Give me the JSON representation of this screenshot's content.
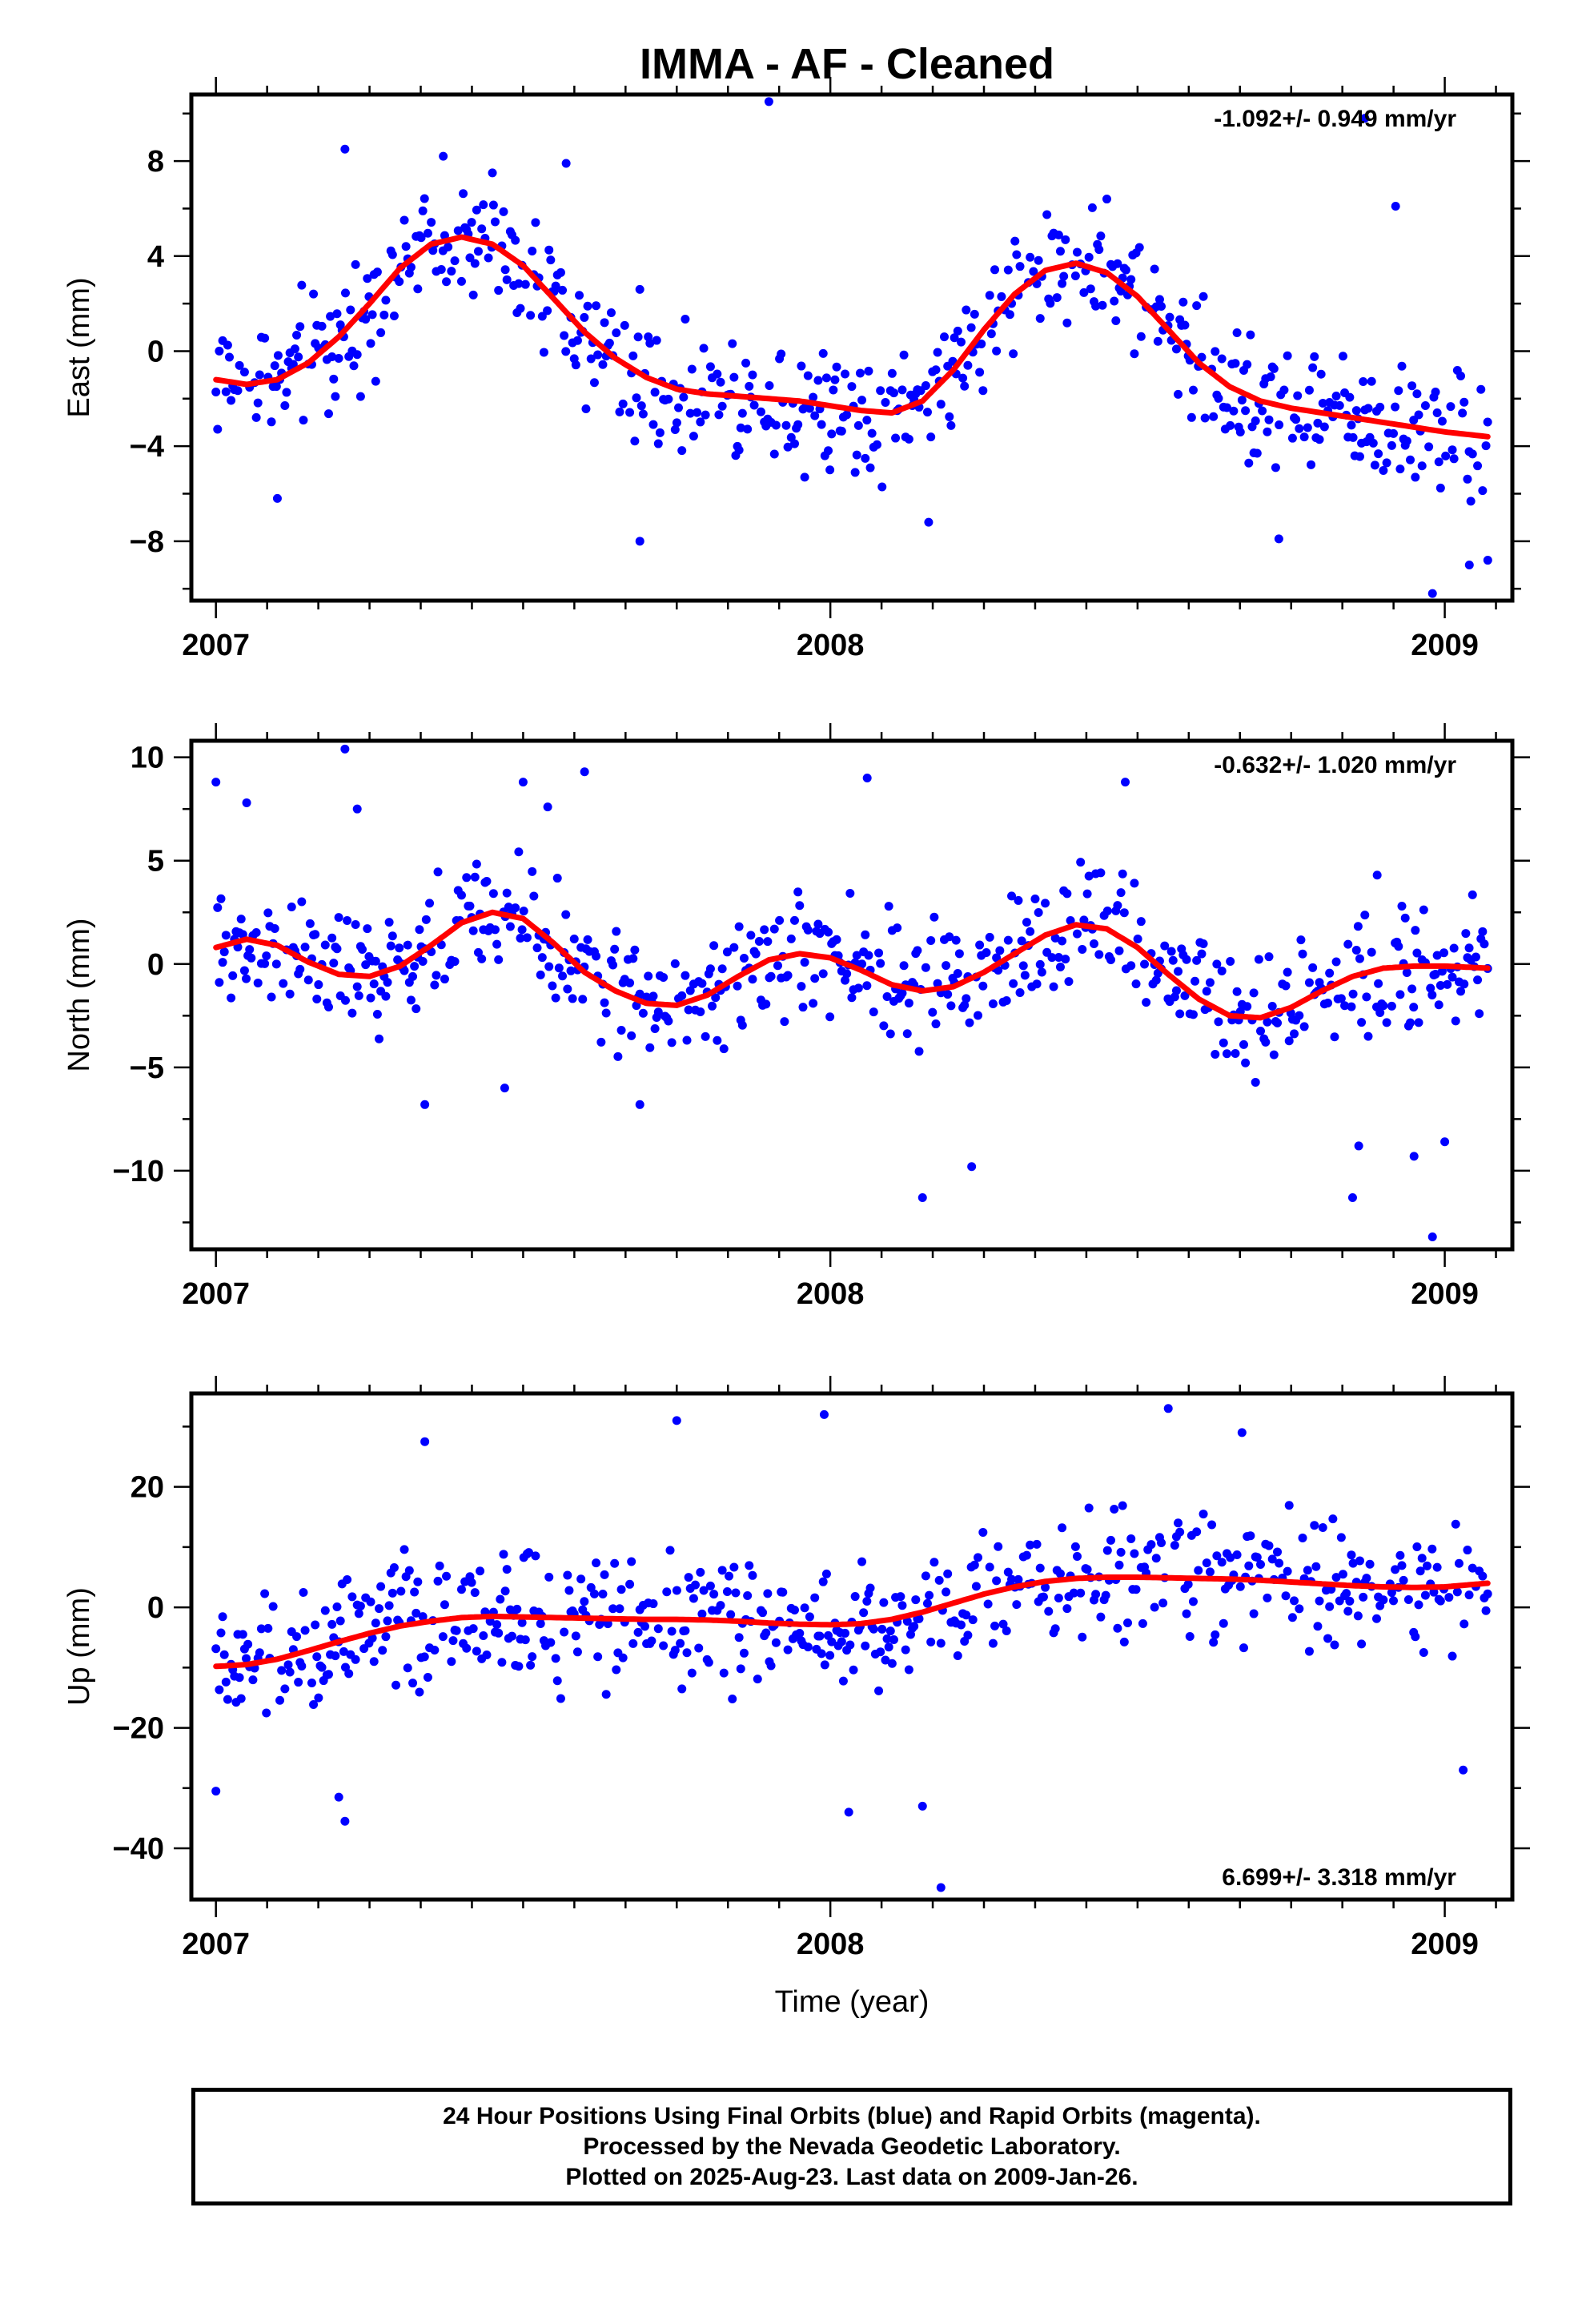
{
  "title": "IMMA  - AF - Cleaned",
  "footer": {
    "line1": "24 Hour Positions Using Final Orbits (blue) and Rapid Orbits (magenta).",
    "line2": "Processed by the Nevada Geodetic Laboratory.",
    "line3": "Plotted on 2025-Aug-23. Last data on 2009-Jan-26."
  },
  "colors": {
    "points": "#0000ff",
    "fit": "#ff0000",
    "frame": "#000000"
  },
  "chart_data": [
    {
      "type": "scatter",
      "ylabel": "East (mm)",
      "xlabel": "",
      "rate": "-1.092+/- 0.949 mm/yr",
      "rate_position": "top-right",
      "xlim": [
        2006.96,
        2009.11
      ],
      "ylim": [
        -10.5,
        10.8
      ],
      "xticks": [
        "2007",
        "2008",
        "2009"
      ],
      "yticks": [
        -8,
        -4,
        0,
        4,
        8
      ],
      "fit_x": [
        2007.0,
        2007.05,
        2007.1,
        2007.15,
        2007.2,
        2007.25,
        2007.3,
        2007.35,
        2007.4,
        2007.45,
        2007.5,
        2007.55,
        2007.6,
        2007.65,
        2007.7,
        2007.75,
        2007.8,
        2007.85,
        2007.9,
        2007.95,
        2008.0,
        2008.05,
        2008.1,
        2008.15,
        2008.2,
        2008.25,
        2008.3,
        2008.35,
        2008.4,
        2008.45,
        2008.5,
        2008.55,
        2008.6,
        2008.65,
        2008.7,
        2008.75,
        2008.8,
        2008.85,
        2008.9,
        2008.95,
        2009.0,
        2009.07
      ],
      "fit_y": [
        -1.2,
        -1.4,
        -1.2,
        -0.5,
        0.6,
        2.0,
        3.5,
        4.5,
        4.8,
        4.5,
        3.6,
        2.2,
        0.8,
        -0.3,
        -1.1,
        -1.6,
        -1.8,
        -1.9,
        -2.0,
        -2.1,
        -2.3,
        -2.5,
        -2.6,
        -2.1,
        -0.8,
        0.9,
        2.4,
        3.4,
        3.7,
        3.3,
        2.3,
        0.9,
        -0.5,
        -1.5,
        -2.1,
        -2.4,
        -2.6,
        -2.8,
        -3.0,
        -3.2,
        -3.4,
        -3.6
      ],
      "series": [
        {
          "name": "",
          "spread": 2.2,
          "outliers": [
            [
              2007.1,
              -6.2
            ],
            [
              2007.21,
              8.5
            ],
            [
              2007.37,
              8.2
            ],
            [
              2007.45,
              7.5
            ],
            [
              2007.57,
              7.9
            ],
            [
              2007.69,
              -8.0
            ],
            [
              2007.9,
              10.5
            ],
            [
              2008.16,
              -7.2
            ],
            [
              2008.45,
              6.4
            ],
            [
              2008.73,
              -7.9
            ],
            [
              2008.87,
              9.8
            ],
            [
              2008.92,
              6.1
            ],
            [
              2008.98,
              -10.2
            ],
            [
              2009.04,
              -9.0
            ],
            [
              2009.07,
              -8.8
            ]
          ]
        }
      ]
    },
    {
      "type": "scatter",
      "ylabel": "North (mm)",
      "xlabel": "",
      "rate": "-0.632+/- 1.020 mm/yr",
      "rate_position": "top-right",
      "xlim": [
        2006.96,
        2009.11
      ],
      "ylim": [
        -13.8,
        10.8
      ],
      "xticks": [
        "2007",
        "2008",
        "2009"
      ],
      "yticks": [
        -10,
        -5,
        0,
        5,
        10
      ],
      "fit_x": [
        2007.0,
        2007.05,
        2007.1,
        2007.15,
        2007.2,
        2007.25,
        2007.3,
        2007.35,
        2007.4,
        2007.45,
        2007.5,
        2007.55,
        2007.6,
        2007.65,
        2007.7,
        2007.75,
        2007.8,
        2007.85,
        2007.9,
        2007.95,
        2008.0,
        2008.05,
        2008.1,
        2008.15,
        2008.2,
        2008.25,
        2008.3,
        2008.35,
        2008.4,
        2008.45,
        2008.5,
        2008.55,
        2008.6,
        2008.65,
        2008.7,
        2008.75,
        2008.8,
        2008.85,
        2008.9,
        2008.95,
        2009.0,
        2009.07
      ],
      "fit_y": [
        0.8,
        1.2,
        0.9,
        0.1,
        -0.5,
        -0.6,
        -0.1,
        0.9,
        2.0,
        2.5,
        2.2,
        1.0,
        -0.4,
        -1.3,
        -1.9,
        -2.0,
        -1.5,
        -0.6,
        0.2,
        0.5,
        0.3,
        -0.3,
        -1.0,
        -1.3,
        -1.1,
        -0.4,
        0.5,
        1.4,
        1.9,
        1.7,
        0.8,
        -0.5,
        -1.7,
        -2.5,
        -2.6,
        -2.1,
        -1.3,
        -0.6,
        -0.2,
        -0.1,
        -0.1,
        -0.2
      ],
      "series": [
        {
          "name": "",
          "spread": 2.4,
          "outliers": [
            [
              2007.0,
              8.8
            ],
            [
              2007.05,
              7.8
            ],
            [
              2007.21,
              10.4
            ],
            [
              2007.23,
              7.5
            ],
            [
              2007.34,
              -6.8
            ],
            [
              2007.47,
              -6.0
            ],
            [
              2007.5,
              8.8
            ],
            [
              2007.54,
              7.6
            ],
            [
              2007.6,
              9.3
            ],
            [
              2007.69,
              -6.8
            ],
            [
              2008.06,
              9.0
            ],
            [
              2008.15,
              -11.3
            ],
            [
              2008.23,
              -9.8
            ],
            [
              2008.48,
              8.8
            ],
            [
              2008.85,
              -11.3
            ],
            [
              2008.86,
              -8.8
            ],
            [
              2008.89,
              4.3
            ],
            [
              2008.95,
              -9.3
            ],
            [
              2008.98,
              -13.2
            ],
            [
              2009.0,
              -8.6
            ]
          ]
        }
      ]
    },
    {
      "type": "scatter",
      "ylabel": "Up (mm)",
      "xlabel": "Time (year)",
      "rate": "6.699+/- 3.318 mm/yr",
      "rate_position": "bottom-right",
      "xlim": [
        2006.96,
        2009.11
      ],
      "ylim": [
        -48.5,
        35.5
      ],
      "xticks": [
        "2007",
        "2008",
        "2009"
      ],
      "yticks": [
        -40,
        -20,
        0,
        20
      ],
      "fit_x": [
        2007.0,
        2007.05,
        2007.1,
        2007.15,
        2007.2,
        2007.25,
        2007.3,
        2007.35,
        2007.4,
        2007.45,
        2007.5,
        2007.55,
        2007.6,
        2007.65,
        2007.7,
        2007.75,
        2007.8,
        2007.85,
        2007.9,
        2007.95,
        2008.0,
        2008.05,
        2008.1,
        2008.15,
        2008.2,
        2008.25,
        2008.3,
        2008.35,
        2008.4,
        2008.45,
        2008.5,
        2008.55,
        2008.6,
        2008.65,
        2008.7,
        2008.75,
        2008.8,
        2008.85,
        2008.9,
        2008.95,
        2009.0,
        2009.07
      ],
      "fit_y": [
        -9.8,
        -9.5,
        -8.6,
        -7.2,
        -5.7,
        -4.3,
        -3.1,
        -2.3,
        -1.7,
        -1.5,
        -1.6,
        -1.7,
        -1.8,
        -1.9,
        -2.0,
        -2.0,
        -2.1,
        -2.3,
        -2.6,
        -2.8,
        -2.9,
        -2.7,
        -2.0,
        -0.8,
        0.7,
        2.2,
        3.4,
        4.3,
        4.8,
        5.0,
        5.0,
        4.9,
        4.8,
        4.7,
        4.5,
        4.2,
        3.9,
        3.6,
        3.4,
        3.3,
        3.4,
        4.0
      ],
      "series": [
        {
          "name": "",
          "spread": 8.5,
          "outliers": [
            [
              2007.0,
              -30.5
            ],
            [
              2007.2,
              -31.5
            ],
            [
              2007.21,
              -35.5
            ],
            [
              2007.34,
              27.5
            ],
            [
              2007.75,
              31.0
            ],
            [
              2007.99,
              32.0
            ],
            [
              2008.03,
              -34.0
            ],
            [
              2008.15,
              -33.0
            ],
            [
              2008.18,
              -46.5
            ],
            [
              2008.55,
              33.0
            ],
            [
              2008.67,
              29.0
            ],
            [
              2009.03,
              -27.0
            ]
          ]
        }
      ]
    }
  ]
}
